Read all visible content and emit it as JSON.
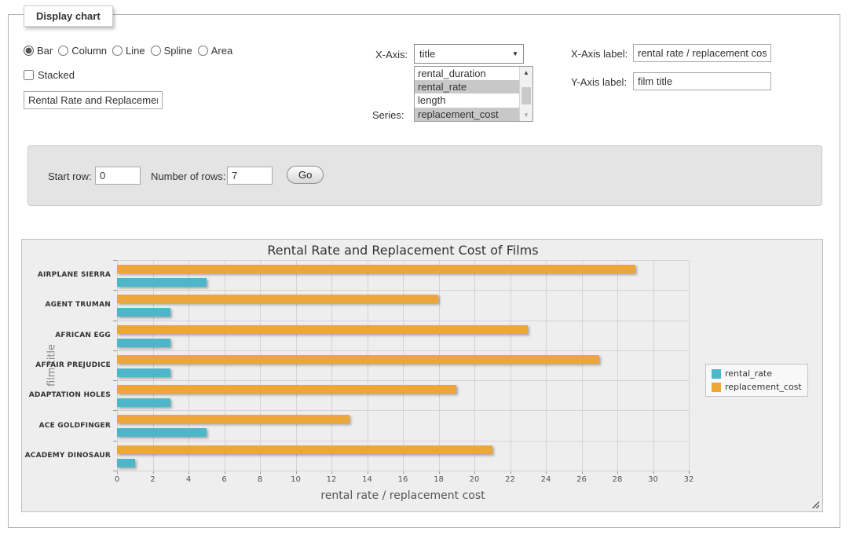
{
  "panel": {
    "legend_title": "Display chart"
  },
  "controls": {
    "chart_types": [
      {
        "label": "Bar",
        "selected": true
      },
      {
        "label": "Column",
        "selected": false
      },
      {
        "label": "Line",
        "selected": false
      },
      {
        "label": "Spline",
        "selected": false
      },
      {
        "label": "Area",
        "selected": false
      }
    ],
    "stacked_label": "Stacked",
    "stacked_checked": false,
    "chart_title_value": "Rental Rate and Replacement Cost of Films",
    "x_axis_label_text": "X-Axis:",
    "x_axis_selected": "title",
    "series_label_text": "Series:",
    "series_options": [
      {
        "label": "rental_duration",
        "selected": false
      },
      {
        "label": "rental_rate",
        "selected": true
      },
      {
        "label": "length",
        "selected": false
      },
      {
        "label": "replacement_cost",
        "selected": true
      }
    ],
    "x_axis_label_label": "X-Axis label:",
    "x_axis_label_value": "rental rate / replacement cost",
    "y_axis_label_label": "Y-Axis label:",
    "y_axis_label_value": "film title"
  },
  "rows_panel": {
    "start_row_label": "Start row:",
    "start_row_value": "0",
    "num_rows_label": "Number of rows:",
    "num_rows_value": "7",
    "go_label": "Go"
  },
  "chart_data": {
    "type": "bar",
    "orientation": "horizontal",
    "title": "Rental Rate and Replacement Cost of Films",
    "xlabel": "rental rate / replacement cost",
    "ylabel": "film title",
    "categories": [
      "AIRPLANE SIERRA",
      "AGENT TRUMAN",
      "AFRICAN EGG",
      "AFFAIR PREJUDICE",
      "ADAPTATION HOLES",
      "ACE GOLDFINGER",
      "ACADEMY DINOSAUR"
    ],
    "series": [
      {
        "name": "rental_rate",
        "color": "#4DB6C9",
        "values": [
          4.99,
          2.99,
          2.99,
          2.99,
          2.99,
          4.99,
          0.99
        ]
      },
      {
        "name": "replacement_cost",
        "color": "#EDA63A",
        "values": [
          28.99,
          17.99,
          22.99,
          26.99,
          18.99,
          12.99,
          20.99
        ]
      }
    ],
    "band_order_top_to_bottom": [
      "replacement_cost",
      "rental_rate"
    ],
    "xlim": [
      0,
      32
    ],
    "xtick_step": 2,
    "grid": true,
    "legend_position": "right"
  }
}
